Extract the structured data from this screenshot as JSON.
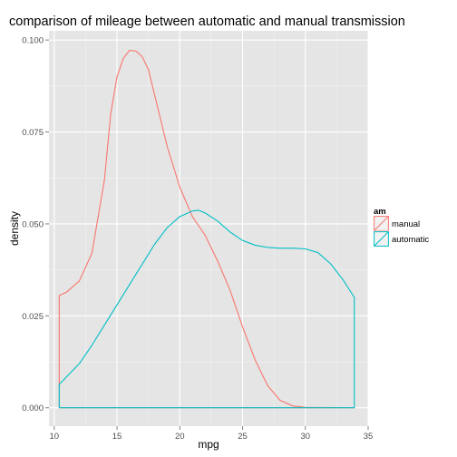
{
  "chart_data": {
    "type": "line",
    "subtype": "density",
    "title": "comparison of mileage between automatic and manual transmission",
    "xlabel": "mpg",
    "ylabel": "density",
    "xlim": [
      9.58,
      35.0
    ],
    "ylim": [
      -0.005,
      0.1025
    ],
    "x_ticks": [
      10,
      15,
      20,
      25,
      30,
      35
    ],
    "y_ticks": [
      0.0,
      0.025,
      0.05,
      0.075,
      0.1
    ],
    "y_tick_labels": [
      "0.000",
      "0.025",
      "0.050",
      "0.075",
      "0.100"
    ],
    "grid": true,
    "panel_background": "#e5e5e5",
    "legend": {
      "title": "am",
      "position": "right",
      "entries": [
        "manual",
        "automatic"
      ]
    },
    "series": [
      {
        "name": "manual",
        "color": "#f8766d",
        "points": [
          [
            10.4,
            0.0
          ],
          [
            10.4,
            0.0305
          ],
          [
            11,
            0.0315
          ],
          [
            12,
            0.0345
          ],
          [
            13,
            0.042
          ],
          [
            14,
            0.062
          ],
          [
            14.5,
            0.08
          ],
          [
            15,
            0.09
          ],
          [
            15.5,
            0.095
          ],
          [
            16,
            0.0972
          ],
          [
            16.5,
            0.097
          ],
          [
            17,
            0.0955
          ],
          [
            17.5,
            0.092
          ],
          [
            18,
            0.085
          ],
          [
            19,
            0.071
          ],
          [
            20,
            0.06
          ],
          [
            20.5,
            0.056
          ],
          [
            21,
            0.052
          ],
          [
            22,
            0.047
          ],
          [
            23,
            0.04
          ],
          [
            24,
            0.032
          ],
          [
            25,
            0.022
          ],
          [
            26,
            0.013
          ],
          [
            27,
            0.006
          ],
          [
            28,
            0.002
          ],
          [
            29,
            0.0005
          ],
          [
            30,
            0.0001
          ],
          [
            33.9,
            0.0
          ],
          [
            10.4,
            0.0
          ]
        ]
      },
      {
        "name": "automatic",
        "color": "#00bfc4",
        "points": [
          [
            10.4,
            0.0
          ],
          [
            10.4,
            0.0063
          ],
          [
            11,
            0.0085
          ],
          [
            12,
            0.012
          ],
          [
            13,
            0.017
          ],
          [
            14,
            0.0225
          ],
          [
            15,
            0.028
          ],
          [
            16,
            0.0335
          ],
          [
            17,
            0.039
          ],
          [
            18,
            0.0445
          ],
          [
            19,
            0.049
          ],
          [
            20,
            0.052
          ],
          [
            21,
            0.0535
          ],
          [
            21.5,
            0.0537
          ],
          [
            22,
            0.053
          ],
          [
            23,
            0.0508
          ],
          [
            24,
            0.0478
          ],
          [
            25,
            0.0455
          ],
          [
            26,
            0.0442
          ],
          [
            27,
            0.0436
          ],
          [
            28,
            0.0434
          ],
          [
            29,
            0.0434
          ],
          [
            30,
            0.0432
          ],
          [
            31,
            0.0422
          ],
          [
            32,
            0.0392
          ],
          [
            33,
            0.0348
          ],
          [
            33.9,
            0.03
          ],
          [
            33.9,
            0.0
          ],
          [
            10.4,
            0.0
          ]
        ]
      }
    ]
  }
}
